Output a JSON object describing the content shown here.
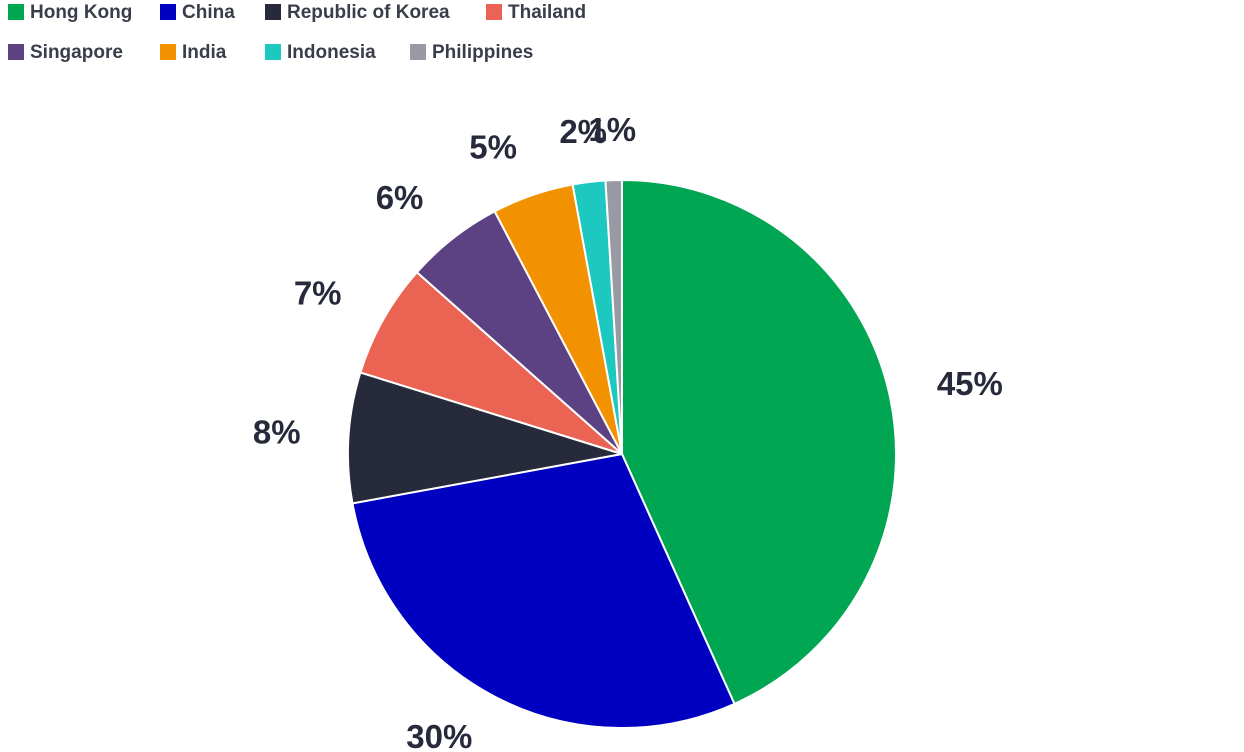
{
  "chart_data": {
    "type": "pie",
    "categories": [
      "Hong Kong",
      "China",
      "Republic of Korea",
      "Thailand",
      "Singapore",
      "India",
      "Indonesia",
      "Philippines"
    ],
    "values": [
      45,
      30,
      8,
      7,
      6,
      5,
      2,
      1
    ],
    "value_labels": [
      "45%",
      "30%",
      "8%",
      "7%",
      "6%",
      "5%",
      "2%",
      "1%"
    ],
    "colors": [
      "#00a651",
      "#0000c0",
      "#262a3b",
      "#eb6352",
      "#5c4283",
      "#f39200",
      "#1cc8c0",
      "#9a9aa5"
    ],
    "legend": "top-left"
  }
}
